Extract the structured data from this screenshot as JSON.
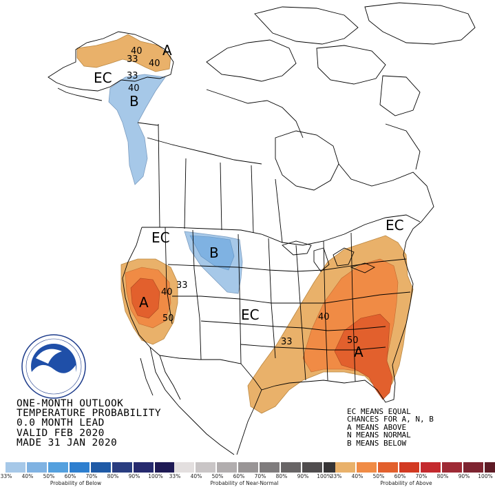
{
  "title": {
    "line1": "ONE-MONTH OUTLOOK",
    "line2": "TEMPERATURE PROBABILITY",
    "line3": "0.0 MONTH LEAD",
    "line4": "VALID FEB 2020",
    "line5": "MADE 31 JAN 2020"
  },
  "key": {
    "line1": "EC MEANS EQUAL",
    "line2": "CHANCES FOR A, N, B",
    "line3": "A MEANS ABOVE",
    "line4": "N MEANS NORMAL",
    "line5": "B MEANS BELOW"
  },
  "map_labels": {
    "alaska_A": "A",
    "alaska_40": "40",
    "alaska_33_top": "33",
    "alaska_40_right": "40",
    "alaska_EC": "EC",
    "alaska_B": "B",
    "alaska_33_b": "33",
    "alaska_40_b": "40",
    "west_EC": "EC",
    "plains_B": "B",
    "west_A": "A",
    "west_33": "33",
    "west_40": "40",
    "west_50": "50",
    "central_EC": "EC",
    "east_EC": "EC",
    "southeast_33": "33",
    "southeast_40": "40",
    "southeast_50": "50",
    "southeast_A": "A"
  },
  "legend": {
    "below": {
      "label": "Probability of Below",
      "colors": [
        "#a6c8e8",
        "#7fb2e2",
        "#54a0de",
        "#2e7fcf",
        "#1f5aa6",
        "#293d80",
        "#262a6e",
        "#1e1a55"
      ],
      "ticks": [
        "33%",
        "40%",
        "50%",
        "60%",
        "70%",
        "80%",
        "90%",
        "100%"
      ]
    },
    "normal": {
      "label": "Probability of Near-Normal",
      "colors": [
        "#e3dfdf",
        "#c9c5c6",
        "#b1adae",
        "#999596",
        "#7f7c7d",
        "#686566",
        "#504d4e",
        "#363435"
      ],
      "ticks": [
        "33%",
        "40%",
        "50%",
        "60%",
        "70%",
        "80%",
        "90%",
        "100%"
      ]
    },
    "above": {
      "label": "Probability of Above",
      "colors": [
        "#e9b16a",
        "#f08b45",
        "#e2602d",
        "#d23a22",
        "#c42a2e",
        "#9e2a35",
        "#7e2430",
        "#5e1b25"
      ],
      "ticks": [
        "33%",
        "40%",
        "50%",
        "60%",
        "70%",
        "80%",
        "90%",
        "100%"
      ]
    }
  },
  "colors": {
    "above_33": "#e9b16a",
    "above_40": "#f08b45",
    "above_50": "#e2602d",
    "below_33": "#a6c8e8",
    "below_40": "#7fb2e2"
  }
}
